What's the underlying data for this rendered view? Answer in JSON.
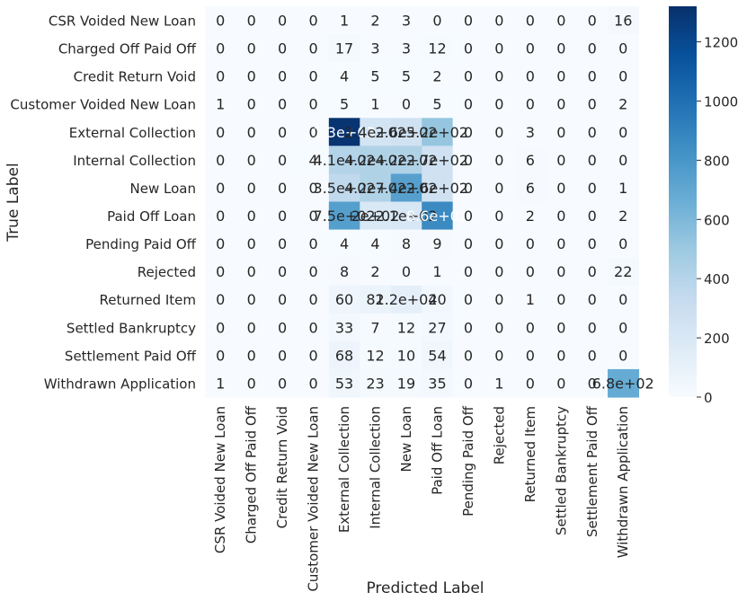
{
  "chart_data": {
    "type": "heatmap",
    "xlabel": "Predicted Label",
    "ylabel": "True Label",
    "row_labels": [
      "CSR Voided New Loan",
      "Charged Off Paid Off",
      "Credit Return Void",
      "Customer Voided New Loan",
      "External Collection",
      "Internal Collection",
      "New Loan",
      "Paid Off Loan",
      "Pending Paid Off",
      "Rejected",
      "Returned Item",
      "Settled Bankruptcy",
      "Settlement Paid Off",
      "Withdrawn Application"
    ],
    "col_labels": [
      "CSR Voided New Loan",
      "Charged Off Paid Off",
      "Credit Return Void",
      "Customer Voided New Loan",
      "External Collection",
      "Internal Collection",
      "New Loan",
      "Paid Off Loan",
      "Pending Paid Off",
      "Rejected",
      "Returned Item",
      "Settled Bankruptcy",
      "Settlement Paid Off",
      "Withdrawn Application"
    ],
    "values": [
      [
        0,
        0,
        0,
        0,
        1,
        2,
        3,
        0,
        0,
        0,
        0,
        0,
        0,
        16
      ],
      [
        0,
        0,
        0,
        0,
        17,
        3,
        3,
        12,
        0,
        0,
        0,
        0,
        0,
        0
      ],
      [
        0,
        0,
        0,
        0,
        4,
        5,
        5,
        2,
        0,
        0,
        0,
        0,
        0,
        0
      ],
      [
        1,
        0,
        0,
        0,
        5,
        1,
        0,
        5,
        0,
        0,
        0,
        0,
        0,
        2
      ],
      [
        0,
        0,
        0,
        0,
        1300,
        240,
        260,
        520,
        0,
        0,
        3,
        0,
        0,
        0
      ],
      [
        0,
        0,
        0,
        4,
        410,
        420,
        420,
        270,
        0,
        0,
        6,
        0,
        0,
        0
      ],
      [
        0,
        0,
        0,
        0,
        350,
        420,
        740,
        260,
        0,
        0,
        6,
        0,
        0,
        1
      ],
      [
        0,
        0,
        0,
        0,
        750,
        200,
        210,
        860,
        0,
        0,
        2,
        0,
        0,
        2
      ],
      [
        0,
        0,
        0,
        0,
        4,
        4,
        8,
        9,
        0,
        0,
        0,
        0,
        0,
        0
      ],
      [
        0,
        0,
        0,
        0,
        8,
        2,
        0,
        1,
        0,
        0,
        0,
        0,
        0,
        22
      ],
      [
        0,
        0,
        0,
        0,
        60,
        82,
        120,
        40,
        0,
        0,
        1,
        0,
        0,
        0
      ],
      [
        0,
        0,
        0,
        0,
        33,
        7,
        12,
        27,
        0,
        0,
        0,
        0,
        0,
        0
      ],
      [
        0,
        0,
        0,
        0,
        68,
        12,
        10,
        54,
        0,
        0,
        0,
        0,
        0,
        0
      ],
      [
        1,
        0,
        0,
        0,
        53,
        23,
        19,
        35,
        0,
        1,
        0,
        0,
        0,
        680
      ]
    ],
    "annotations": [
      [
        "0",
        "0",
        "0",
        "0",
        "1",
        "2",
        "3",
        "0",
        "0",
        "0",
        "0",
        "0",
        "0",
        "16"
      ],
      [
        "0",
        "0",
        "0",
        "0",
        "17",
        "3",
        "3",
        "12",
        "0",
        "0",
        "0",
        "0",
        "0",
        "0"
      ],
      [
        "0",
        "0",
        "0",
        "0",
        "4",
        "5",
        "5",
        "2",
        "0",
        "0",
        "0",
        "0",
        "0",
        "0"
      ],
      [
        "1",
        "0",
        "0",
        "0",
        "5",
        "1",
        "0",
        "5",
        "0",
        "0",
        "0",
        "0",
        "0",
        "2"
      ],
      [
        "0",
        "0",
        "0",
        "0",
        "1.3e+03",
        "2.4e+02",
        "2.6e+02",
        "5.2e+02",
        "0",
        "0",
        "3",
        "0",
        "0",
        "0"
      ],
      [
        "0",
        "0",
        "0",
        "4",
        "4.1e+02",
        "4.2e+02",
        "4.2e+02",
        "2.7e+02",
        "0",
        "0",
        "6",
        "0",
        "0",
        "0"
      ],
      [
        "0",
        "0",
        "0",
        "0",
        "3.5e+02",
        "4.2e+02",
        "7.4e+02",
        "2.6e+02",
        "0",
        "0",
        "6",
        "0",
        "0",
        "1"
      ],
      [
        "0",
        "0",
        "0",
        "0",
        "7.5e+02",
        "2e+02",
        "2.1e+02",
        "8.6e+02",
        "0",
        "0",
        "2",
        "0",
        "0",
        "2"
      ],
      [
        "0",
        "0",
        "0",
        "0",
        "4",
        "4",
        "8",
        "9",
        "0",
        "0",
        "0",
        "0",
        "0",
        "0"
      ],
      [
        "0",
        "0",
        "0",
        "0",
        "8",
        "2",
        "0",
        "1",
        "0",
        "0",
        "0",
        "0",
        "0",
        "22"
      ],
      [
        "0",
        "0",
        "0",
        "0",
        "60",
        "82",
        "1.2e+02",
        "40",
        "0",
        "0",
        "1",
        "0",
        "0",
        "0"
      ],
      [
        "0",
        "0",
        "0",
        "0",
        "33",
        "7",
        "12",
        "27",
        "0",
        "0",
        "0",
        "0",
        "0",
        "0"
      ],
      [
        "0",
        "0",
        "0",
        "0",
        "68",
        "12",
        "10",
        "54",
        "0",
        "0",
        "0",
        "0",
        "0",
        "0"
      ],
      [
        "1",
        "0",
        "0",
        "0",
        "53",
        "23",
        "19",
        "35",
        "0",
        "1",
        "0",
        "0",
        "0",
        "6.8e+02"
      ]
    ],
    "colorbar": {
      "range": [
        0,
        1320
      ],
      "ticks": [
        0,
        200,
        400,
        600,
        800,
        1000,
        1200
      ]
    },
    "colormap": "Blues",
    "colors": {
      "low": "#f7fbff",
      "high": "#08306b"
    }
  }
}
